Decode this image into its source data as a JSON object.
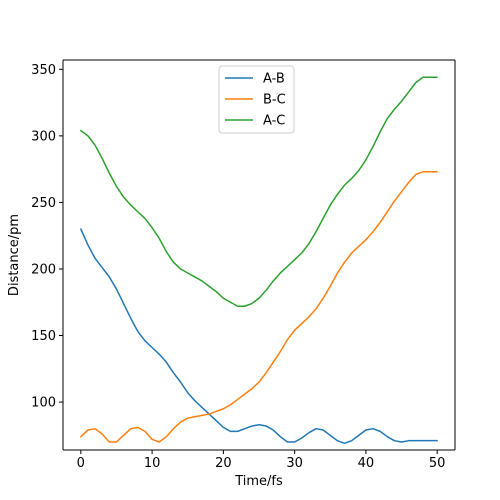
{
  "chart_data": {
    "type": "line",
    "title": "",
    "xlabel": "Time/fs",
    "ylabel": "Distance/pm",
    "xlim": [
      -2.5,
      52.5
    ],
    "ylim": [
      64,
      357
    ],
    "xticks": [
      0,
      10,
      20,
      30,
      40,
      50
    ],
    "yticks": [
      100,
      150,
      200,
      250,
      300,
      350
    ],
    "xtick_labels": [
      "0",
      "10",
      "20",
      "30",
      "40",
      "50"
    ],
    "ytick_labels": [
      "100",
      "150",
      "200",
      "250",
      "300",
      "350"
    ],
    "grid": false,
    "legend_position": "top-center",
    "series": [
      {
        "name": "A-B",
        "color": "#1f77b4",
        "x": [
          0,
          1,
          2,
          3,
          4,
          5,
          6,
          7,
          8,
          9,
          10,
          11,
          12,
          13,
          14,
          15,
          16,
          17,
          18,
          19,
          20,
          21,
          22,
          23,
          24,
          25,
          26,
          27,
          28,
          29,
          30,
          31,
          32,
          33,
          34,
          35,
          36,
          37,
          38,
          39,
          40,
          41,
          42,
          43,
          44,
          45,
          46,
          47,
          48,
          49,
          50
        ],
        "y": [
          230,
          218,
          208,
          201,
          194,
          185,
          174,
          163,
          153,
          146,
          141,
          136,
          130,
          122,
          115,
          107,
          101,
          96,
          91,
          86,
          81,
          78,
          78,
          80,
          82,
          83,
          82,
          79,
          74,
          70,
          70,
          73,
          77,
          80,
          79,
          75,
          71,
          69,
          71,
          75,
          79,
          80,
          78,
          74,
          71,
          70,
          71,
          71,
          71,
          71,
          71
        ]
      },
      {
        "name": "B-C",
        "color": "#ff7f0e",
        "x": [
          0,
          1,
          2,
          3,
          4,
          5,
          6,
          7,
          8,
          9,
          10,
          11,
          12,
          13,
          14,
          15,
          16,
          17,
          18,
          19,
          20,
          21,
          22,
          23,
          24,
          25,
          26,
          27,
          28,
          29,
          30,
          31,
          32,
          33,
          34,
          35,
          36,
          37,
          38,
          39,
          40,
          41,
          42,
          43,
          44,
          45,
          46,
          47,
          48,
          49,
          50
        ],
        "y": [
          74,
          79,
          80,
          76,
          70,
          70,
          75,
          80,
          81,
          78,
          72,
          70,
          74,
          80,
          85,
          88,
          89,
          90,
          91,
          93,
          95,
          98,
          102,
          106,
          110,
          115,
          122,
          130,
          138,
          147,
          154,
          159,
          164,
          170,
          178,
          187,
          197,
          205,
          212,
          217,
          222,
          228,
          235,
          243,
          251,
          258,
          265,
          271,
          273,
          273,
          273
        ]
      },
      {
        "name": "A-C",
        "color": "#2ca02c",
        "x": [
          0,
          1,
          2,
          3,
          4,
          5,
          6,
          7,
          8,
          9,
          10,
          11,
          12,
          13,
          14,
          15,
          16,
          17,
          18,
          19,
          20,
          21,
          22,
          23,
          24,
          25,
          26,
          27,
          28,
          29,
          30,
          31,
          32,
          33,
          34,
          35,
          36,
          37,
          38,
          39,
          40,
          41,
          42,
          43,
          44,
          45,
          46,
          47,
          48,
          49,
          50
        ],
        "y": [
          304,
          300,
          293,
          283,
          272,
          262,
          254,
          248,
          243,
          238,
          231,
          223,
          213,
          205,
          200,
          197,
          194,
          191,
          187,
          183,
          178,
          175,
          172,
          172,
          174,
          178,
          184,
          191,
          197,
          202,
          207,
          212,
          219,
          228,
          238,
          248,
          256,
          263,
          268,
          274,
          282,
          292,
          303,
          313,
          320,
          326,
          333,
          340,
          344,
          344,
          344
        ]
      }
    ]
  }
}
